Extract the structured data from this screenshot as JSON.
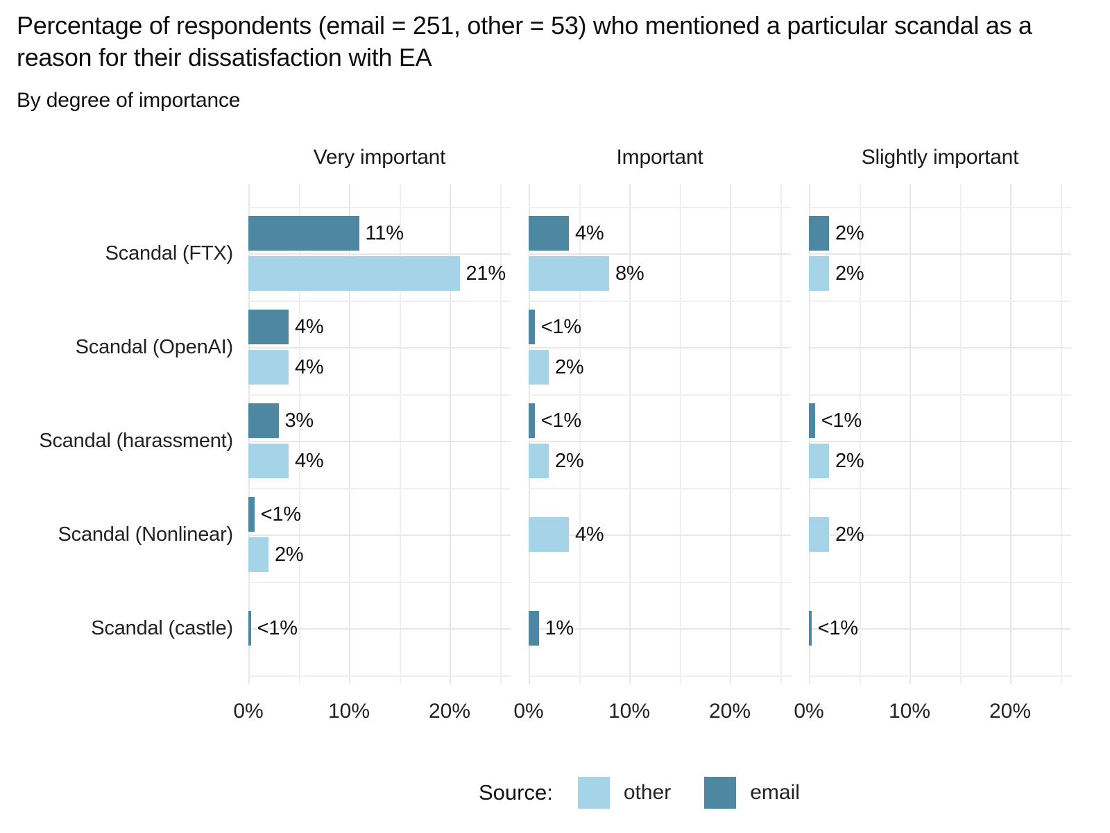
{
  "chart_data": {
    "type": "bar",
    "orientation": "horizontal",
    "title": "Percentage of respondents (email = 251, other = 53) who mentioned a particular scandal as a reason for their dissatisfaction with EA",
    "subtitle": "By degree of importance",
    "categories": [
      "Scandal (FTX)",
      "Scandal (OpenAI)",
      "Scandal (harassment)",
      "Scandal (Nonlinear)",
      "Scandal (castle)"
    ],
    "colors": {
      "other": "#a5d3e8",
      "email": "#4e87a2",
      "grid_major": "#e7e7e7",
      "grid_minor": "#efefef"
    },
    "x_axis": {
      "ticks": [
        {
          "label": "0%",
          "pct": 0
        },
        {
          "label": "10%",
          "pct": 10
        },
        {
          "label": "20%",
          "pct": 20
        }
      ],
      "gridline_pcts": [
        0,
        5,
        10,
        15,
        20,
        25
      ],
      "range_pct": [
        0,
        26
      ],
      "grid": true
    },
    "legend": {
      "label": "Source:",
      "position": "bottom",
      "items": [
        {
          "name": "other",
          "color_key": "other"
        },
        {
          "name": "email",
          "color_key": "email"
        }
      ]
    },
    "panels": [
      {
        "header": "Very important",
        "bars": [
          {
            "category": 0,
            "series": "email",
            "pct": 11,
            "label": "11%",
            "pos": "top"
          },
          {
            "category": 0,
            "series": "other",
            "pct": 21,
            "label": "21%",
            "pos": "bottom"
          },
          {
            "category": 1,
            "series": "email",
            "pct": 4,
            "label": "4%",
            "pos": "top"
          },
          {
            "category": 1,
            "series": "other",
            "pct": 4,
            "label": "4%",
            "pos": "bottom"
          },
          {
            "category": 2,
            "series": "email",
            "pct": 3,
            "label": "3%",
            "pos": "top"
          },
          {
            "category": 2,
            "series": "other",
            "pct": 4,
            "label": "4%",
            "pos": "bottom"
          },
          {
            "category": 3,
            "series": "email",
            "pct": 0.6,
            "label": "<1%",
            "pos": "top"
          },
          {
            "category": 3,
            "series": "other",
            "pct": 2,
            "label": "2%",
            "pos": "bottom"
          },
          {
            "category": 4,
            "series": "email",
            "pct": 0.25,
            "label": "<1%",
            "pos": "center"
          }
        ]
      },
      {
        "header": "Important",
        "bars": [
          {
            "category": 0,
            "series": "email",
            "pct": 4,
            "label": "4%",
            "pos": "top"
          },
          {
            "category": 0,
            "series": "other",
            "pct": 8,
            "label": "8%",
            "pos": "bottom"
          },
          {
            "category": 1,
            "series": "email",
            "pct": 0.6,
            "label": "<1%",
            "pos": "top"
          },
          {
            "category": 1,
            "series": "other",
            "pct": 2,
            "label": "2%",
            "pos": "bottom"
          },
          {
            "category": 2,
            "series": "email",
            "pct": 0.6,
            "label": "<1%",
            "pos": "top"
          },
          {
            "category": 2,
            "series": "other",
            "pct": 2,
            "label": "2%",
            "pos": "bottom"
          },
          {
            "category": 3,
            "series": "other",
            "pct": 4,
            "label": "4%",
            "pos": "center"
          },
          {
            "category": 4,
            "series": "email",
            "pct": 1,
            "label": "1%",
            "pos": "center"
          }
        ]
      },
      {
        "header": "Slightly important",
        "bars": [
          {
            "category": 0,
            "series": "email",
            "pct": 2,
            "label": "2%",
            "pos": "top"
          },
          {
            "category": 0,
            "series": "other",
            "pct": 2,
            "label": "2%",
            "pos": "bottom"
          },
          {
            "category": 2,
            "series": "email",
            "pct": 0.6,
            "label": "<1%",
            "pos": "top"
          },
          {
            "category": 2,
            "series": "other",
            "pct": 2,
            "label": "2%",
            "pos": "bottom"
          },
          {
            "category": 3,
            "series": "other",
            "pct": 2,
            "label": "2%",
            "pos": "center"
          },
          {
            "category": 4,
            "series": "email",
            "pct": 0.25,
            "label": "<1%",
            "pos": "center"
          }
        ]
      }
    ]
  }
}
